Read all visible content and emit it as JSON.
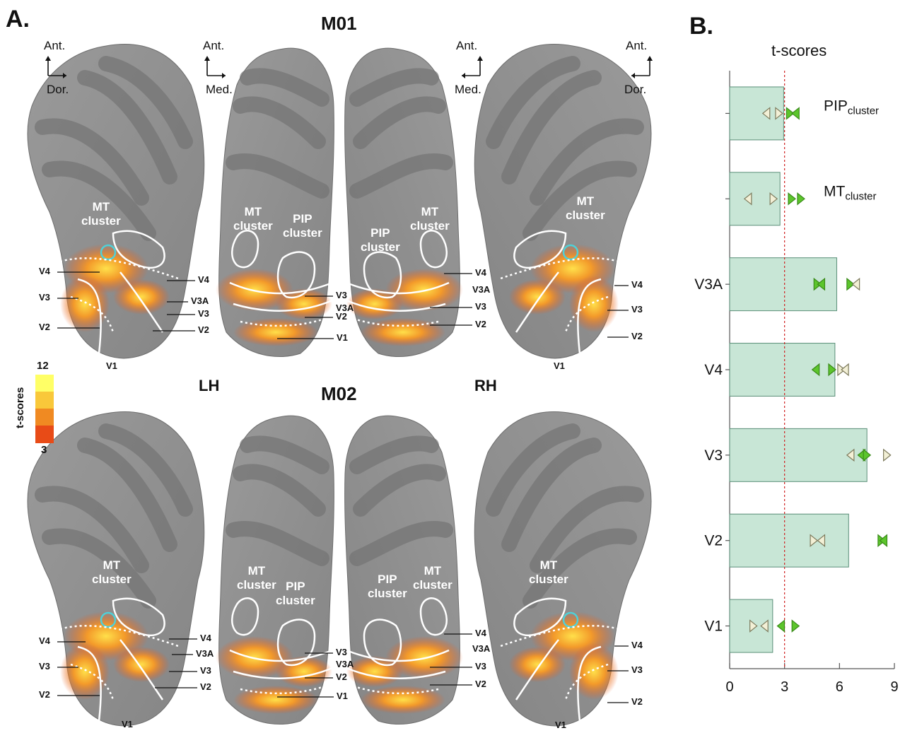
{
  "panel_a": {
    "letter": "A.",
    "monkey_top": "M01",
    "monkey_bottom": "M02",
    "hemi_left": "LH",
    "hemi_right": "RH",
    "orient": [
      {
        "up": "Ant.",
        "side": "Dor."
      },
      {
        "up": "Ant.",
        "side": "Med."
      },
      {
        "up": "Ant.",
        "side": "Med."
      },
      {
        "up": "Ant.",
        "side": "Dor."
      }
    ],
    "cluster_mt": [
      "MT",
      "cluster"
    ],
    "cluster_pip": [
      "PIP",
      "cluster"
    ],
    "roi": {
      "v1": "V1",
      "v2": "V2",
      "v3": "V3",
      "v3a": "V3A",
      "v4": "V4"
    },
    "colorbar": {
      "title": "t-scores",
      "max": "12",
      "min": "3",
      "colors": [
        "#ffff66",
        "#f9c83a",
        "#f08a22",
        "#e84b17"
      ]
    }
  },
  "panel_b": {
    "letter": "B.",
    "chart_data": {
      "type": "bar",
      "orientation": "horizontal",
      "title": "t-scores",
      "categories": [
        "PIPcluster",
        "MTcluster",
        "V3A",
        "V4",
        "V3",
        "V2",
        "V1"
      ],
      "category_labels": [
        {
          "main": "PIP",
          "sub": "cluster"
        },
        {
          "main": "MT",
          "sub": "cluster"
        },
        {
          "main": "V3A",
          "sub": ""
        },
        {
          "main": "V4",
          "sub": ""
        },
        {
          "main": "V3",
          "sub": ""
        },
        {
          "main": "V2",
          "sub": ""
        },
        {
          "main": "V1",
          "sub": ""
        }
      ],
      "values": [
        2.95,
        2.75,
        5.85,
        5.75,
        7.5,
        6.5,
        2.35
      ],
      "xlim": [
        0,
        9
      ],
      "xticks": [
        "0",
        "3",
        "6",
        "9"
      ],
      "threshold": 3,
      "points": [
        {
          "category": "PIPcluster",
          "marker": "left",
          "filled": false,
          "x": 2.0
        },
        {
          "category": "PIPcluster",
          "marker": "right",
          "filled": false,
          "x": 2.7
        },
        {
          "category": "PIPcluster",
          "marker": "right",
          "filled": true,
          "x": 3.3
        },
        {
          "category": "PIPcluster",
          "marker": "left",
          "filled": true,
          "x": 3.6
        },
        {
          "category": "MTcluster",
          "marker": "left",
          "filled": false,
          "x": 1.0
        },
        {
          "category": "MTcluster",
          "marker": "right",
          "filled": false,
          "x": 2.4
        },
        {
          "category": "MTcluster",
          "marker": "right",
          "filled": true,
          "x": 3.4
        },
        {
          "category": "MTcluster",
          "marker": "right",
          "filled": true,
          "x": 3.9
        },
        {
          "category": "V3A",
          "marker": "right",
          "filled": true,
          "x": 4.8
        },
        {
          "category": "V3A",
          "marker": "left",
          "filled": true,
          "x": 5.0
        },
        {
          "category": "V3A",
          "marker": "right",
          "filled": true,
          "x": 6.6
        },
        {
          "category": "V3A",
          "marker": "left",
          "filled": false,
          "x": 6.9
        },
        {
          "category": "V4",
          "marker": "left",
          "filled": true,
          "x": 4.7
        },
        {
          "category": "V4",
          "marker": "right",
          "filled": true,
          "x": 5.6
        },
        {
          "category": "V4",
          "marker": "right",
          "filled": false,
          "x": 6.1
        },
        {
          "category": "V4",
          "marker": "left",
          "filled": false,
          "x": 6.3
        },
        {
          "category": "V3",
          "marker": "left",
          "filled": false,
          "x": 6.6
        },
        {
          "category": "V3",
          "marker": "left",
          "filled": true,
          "x": 7.2
        },
        {
          "category": "V3",
          "marker": "right",
          "filled": true,
          "x": 7.5
        },
        {
          "category": "V3",
          "marker": "right",
          "filled": false,
          "x": 8.6
        },
        {
          "category": "V2",
          "marker": "right",
          "filled": false,
          "x": 4.6
        },
        {
          "category": "V2",
          "marker": "left",
          "filled": false,
          "x": 5.0
        },
        {
          "category": "V2",
          "marker": "right",
          "filled": true,
          "x": 8.3
        },
        {
          "category": "V2",
          "marker": "left",
          "filled": true,
          "x": 8.4
        },
        {
          "category": "V1",
          "marker": "right",
          "filled": false,
          "x": 1.3
        },
        {
          "category": "V1",
          "marker": "left",
          "filled": false,
          "x": 1.9
        },
        {
          "category": "V1",
          "marker": "left",
          "filled": true,
          "x": 2.8
        },
        {
          "category": "V1",
          "marker": "right",
          "filled": true,
          "x": 3.6
        }
      ],
      "colors": {
        "bar_fill": "#c8e6d6",
        "bar_stroke": "#5a8f78",
        "threshold": "#d02020",
        "marker_filled": "#5cc52c",
        "marker_open": "#f3f0d6",
        "marker_open_stroke": "#7d7a5c"
      }
    }
  }
}
